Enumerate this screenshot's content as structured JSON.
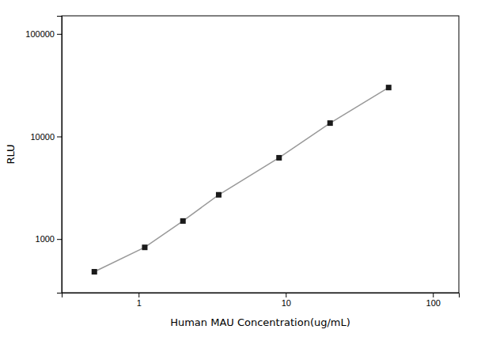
{
  "chart_data": {
    "type": "line",
    "x": [
      0.5,
      1.1,
      2.0,
      3.5,
      9.0,
      20.0,
      50.0
    ],
    "values": [
      480,
      830,
      1500,
      2700,
      6200,
      13500,
      30000
    ],
    "xlabel": "Human MAU Concentration(ug/mL)",
    "ylabel": "RLU",
    "xlim": [
      0.3,
      150
    ],
    "ylim": [
      300,
      150000
    ],
    "xticks": [
      1,
      10,
      100
    ],
    "yticks": [
      1000,
      10000,
      100000
    ],
    "log": true,
    "grid": false,
    "color": "#999999",
    "colors": [
      "#1a1a1a",
      "#1a1a1a",
      "#1a1a1a",
      "#1a1a1a",
      "#1a1a1a",
      "#1a1a1a",
      "#1a1a1a"
    ],
    "marker": "square",
    "line_style": "solid"
  }
}
